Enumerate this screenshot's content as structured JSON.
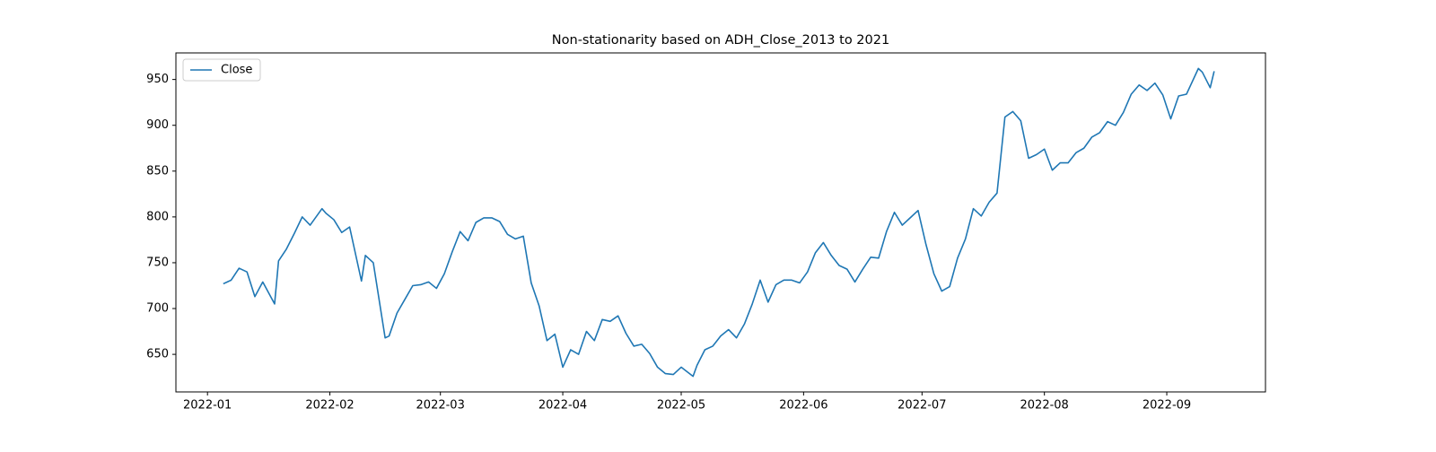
{
  "chart_data": {
    "type": "line",
    "title": "Non-stationarity based on ADH_Close_2013 to 2021",
    "x": [
      "2022-01-05",
      "2022-01-07",
      "2022-01-09",
      "2022-01-11",
      "2022-01-13",
      "2022-01-15",
      "2022-01-18",
      "2022-01-19",
      "2022-01-21",
      "2022-01-23",
      "2022-01-25",
      "2022-01-27",
      "2022-01-30",
      "2022-01-31",
      "2022-02-02",
      "2022-02-04",
      "2022-02-06",
      "2022-02-09",
      "2022-02-10",
      "2022-02-12",
      "2022-02-15",
      "2022-02-16",
      "2022-02-18",
      "2022-02-20",
      "2022-02-22",
      "2022-02-24",
      "2022-02-26",
      "2022-02-28",
      "2022-03-02",
      "2022-03-04",
      "2022-03-06",
      "2022-03-08",
      "2022-03-10",
      "2022-03-12",
      "2022-03-14",
      "2022-03-16",
      "2022-03-18",
      "2022-03-20",
      "2022-03-22",
      "2022-03-24",
      "2022-03-26",
      "2022-03-28",
      "2022-03-30",
      "2022-04-01",
      "2022-04-03",
      "2022-04-05",
      "2022-04-07",
      "2022-04-09",
      "2022-04-11",
      "2022-04-13",
      "2022-04-15",
      "2022-04-17",
      "2022-04-19",
      "2022-04-21",
      "2022-04-23",
      "2022-04-25",
      "2022-04-27",
      "2022-04-29",
      "2022-05-01",
      "2022-05-04",
      "2022-05-05",
      "2022-05-07",
      "2022-05-09",
      "2022-05-11",
      "2022-05-13",
      "2022-05-15",
      "2022-05-17",
      "2022-05-19",
      "2022-05-21",
      "2022-05-23",
      "2022-05-25",
      "2022-05-27",
      "2022-05-29",
      "2022-05-31",
      "2022-06-02",
      "2022-06-04",
      "2022-06-06",
      "2022-06-08",
      "2022-06-10",
      "2022-06-12",
      "2022-06-14",
      "2022-06-16",
      "2022-06-18",
      "2022-06-20",
      "2022-06-22",
      "2022-06-24",
      "2022-06-26",
      "2022-06-28",
      "2022-06-30",
      "2022-07-02",
      "2022-07-04",
      "2022-07-06",
      "2022-07-08",
      "2022-07-10",
      "2022-07-12",
      "2022-07-14",
      "2022-07-16",
      "2022-07-18",
      "2022-07-20",
      "2022-07-22",
      "2022-07-24",
      "2022-07-26",
      "2022-07-28",
      "2022-07-30",
      "2022-08-01",
      "2022-08-03",
      "2022-08-05",
      "2022-08-07",
      "2022-08-09",
      "2022-08-11",
      "2022-08-13",
      "2022-08-15",
      "2022-08-17",
      "2022-08-19",
      "2022-08-21",
      "2022-08-23",
      "2022-08-25",
      "2022-08-27",
      "2022-08-29",
      "2022-08-31",
      "2022-09-02",
      "2022-09-04",
      "2022-09-06",
      "2022-09-09",
      "2022-09-10",
      "2022-09-12",
      "2022-09-13"
    ],
    "series": [
      {
        "name": "Close",
        "color": "#1f77b4",
        "values": [
          727,
          731,
          744,
          740,
          713,
          729,
          705,
          752,
          765,
          782,
          800,
          791,
          809,
          804,
          797,
          783,
          789,
          730,
          758,
          750,
          668,
          670,
          695,
          710,
          725,
          726,
          729,
          722,
          738,
          762,
          784,
          774,
          794,
          799,
          799,
          795,
          781,
          776,
          779,
          728,
          703,
          665,
          672,
          636,
          655,
          650,
          675,
          665,
          688,
          686,
          692,
          673,
          659,
          661,
          651,
          636,
          629,
          628,
          636,
          626,
          638,
          655,
          659,
          670,
          677,
          668,
          683,
          705,
          731,
          707,
          726,
          731,
          731,
          728,
          740,
          761,
          772,
          758,
          747,
          743,
          729,
          743,
          756,
          755,
          784,
          805,
          791,
          799,
          807,
          770,
          738,
          719,
          724,
          755,
          776,
          809,
          801,
          816,
          826,
          909,
          915,
          905,
          864,
          868,
          874,
          851,
          859,
          859,
          870,
          875,
          887,
          892,
          904,
          900,
          914,
          934,
          944,
          938,
          946,
          933,
          907,
          932,
          934,
          962,
          958,
          941,
          959
        ]
      }
    ],
    "xlim": [
      "2021-12-24",
      "2022-09-26"
    ],
    "xticks": [
      {
        "value": "2022-01-01",
        "label": "2022-01"
      },
      {
        "value": "2022-02-01",
        "label": "2022-02"
      },
      {
        "value": "2022-03-01",
        "label": "2022-03"
      },
      {
        "value": "2022-04-01",
        "label": "2022-04"
      },
      {
        "value": "2022-05-01",
        "label": "2022-05"
      },
      {
        "value": "2022-06-01",
        "label": "2022-06"
      },
      {
        "value": "2022-07-01",
        "label": "2022-07"
      },
      {
        "value": "2022-08-01",
        "label": "2022-08"
      },
      {
        "value": "2022-09-01",
        "label": "2022-09"
      }
    ],
    "ylim": [
      609,
      979
    ],
    "yticks": [
      650,
      700,
      750,
      800,
      850,
      900,
      950
    ],
    "grid": false,
    "legend": "upper left"
  }
}
